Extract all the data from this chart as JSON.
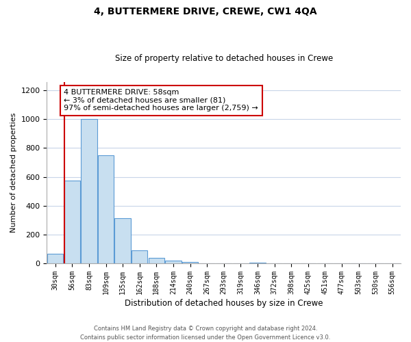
{
  "title": "4, BUTTERMERE DRIVE, CREWE, CW1 4QA",
  "subtitle": "Size of property relative to detached houses in Crewe",
  "xlabel": "Distribution of detached houses by size in Crewe",
  "ylabel": "Number of detached properties",
  "bar_labels": [
    "30sqm",
    "56sqm",
    "83sqm",
    "109sqm",
    "135sqm",
    "162sqm",
    "188sqm",
    "214sqm",
    "240sqm",
    "267sqm",
    "293sqm",
    "319sqm",
    "346sqm",
    "372sqm",
    "398sqm",
    "425sqm",
    "451sqm",
    "477sqm",
    "503sqm",
    "530sqm",
    "556sqm"
  ],
  "bar_values": [
    65,
    575,
    1000,
    750,
    315,
    90,
    40,
    18,
    10,
    0,
    0,
    0,
    5,
    0,
    0,
    0,
    0,
    0,
    0,
    0,
    0
  ],
  "bar_fill_color": "#c8dff0",
  "bar_edge_color": "#5b9bd5",
  "marker_line_color": "#cc0000",
  "ylim": [
    0,
    1260
  ],
  "yticks": [
    0,
    200,
    400,
    600,
    800,
    1000,
    1200
  ],
  "annotation_title": "4 BUTTERMERE DRIVE: 58sqm",
  "annotation_line1": "← 3% of detached houses are smaller (81)",
  "annotation_line2": "97% of semi-detached houses are larger (2,759) →",
  "footer_line1": "Contains HM Land Registry data © Crown copyright and database right 2024.",
  "footer_line2": "Contains public sector information licensed under the Open Government Licence v3.0.",
  "background_color": "#ffffff",
  "grid_color": "#c8d4e8"
}
